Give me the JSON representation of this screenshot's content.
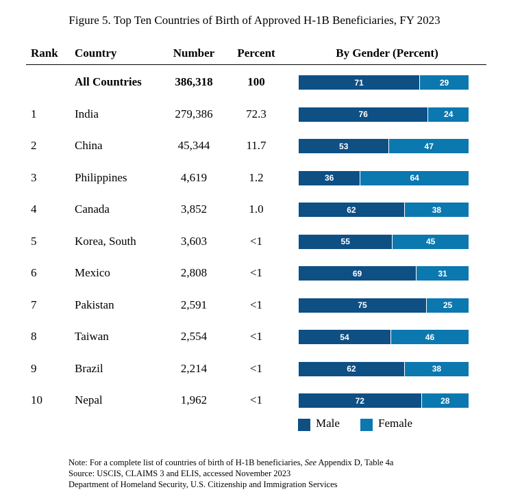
{
  "title": "Figure 5. Top Ten Countries of Birth of Approved H-1B Beneficiaries, FY 2023",
  "columns": {
    "rank": "Rank",
    "country": "Country",
    "number": "Number",
    "percent": "Percent",
    "gender": "By Gender (Percent)"
  },
  "colors": {
    "male": "#0e4f84",
    "female": "#0c78b0"
  },
  "legend": {
    "male": "Male",
    "female": "Female"
  },
  "chart_data": {
    "type": "table",
    "rows": [
      {
        "rank": "",
        "country": "All Countries",
        "number": "386,318",
        "percent": "100",
        "male": 71,
        "female": 29,
        "bold": true
      },
      {
        "rank": "1",
        "country": "India",
        "number": "279,386",
        "percent": "72.3",
        "male": 76,
        "female": 24
      },
      {
        "rank": "2",
        "country": "China",
        "number": "45,344",
        "percent": "11.7",
        "male": 53,
        "female": 47
      },
      {
        "rank": "3",
        "country": "Philippines",
        "number": "4,619",
        "percent": "1.2",
        "male": 36,
        "female": 64
      },
      {
        "rank": "4",
        "country": "Canada",
        "number": "3,852",
        "percent": "1.0",
        "male": 62,
        "female": 38
      },
      {
        "rank": "5",
        "country": "Korea, South",
        "number": "3,603",
        "percent": "<1",
        "male": 55,
        "female": 45
      },
      {
        "rank": "6",
        "country": "Mexico",
        "number": "2,808",
        "percent": "<1",
        "male": 69,
        "female": 31
      },
      {
        "rank": "7",
        "country": "Pakistan",
        "number": "2,591",
        "percent": "<1",
        "male": 75,
        "female": 25
      },
      {
        "rank": "8",
        "country": "Taiwan",
        "number": "2,554",
        "percent": "<1",
        "male": 54,
        "female": 46
      },
      {
        "rank": "9",
        "country": "Brazil",
        "number": "2,214",
        "percent": "<1",
        "male": 62,
        "female": 38
      },
      {
        "rank": "10",
        "country": "Nepal",
        "number": "1,962",
        "percent": "<1",
        "male": 72,
        "female": 28
      }
    ]
  },
  "notes": {
    "note_prefix": "Note: For a complete list of countries of birth of H-1B beneficiaries, ",
    "note_see": "See",
    "note_suffix": " Appendix D, Table 4a",
    "source": "Source: USCIS, CLAIMS 3 and ELIS, accessed November 2023",
    "agency": "Department of Homeland Security, U.S. Citizenship and Immigration Services"
  }
}
